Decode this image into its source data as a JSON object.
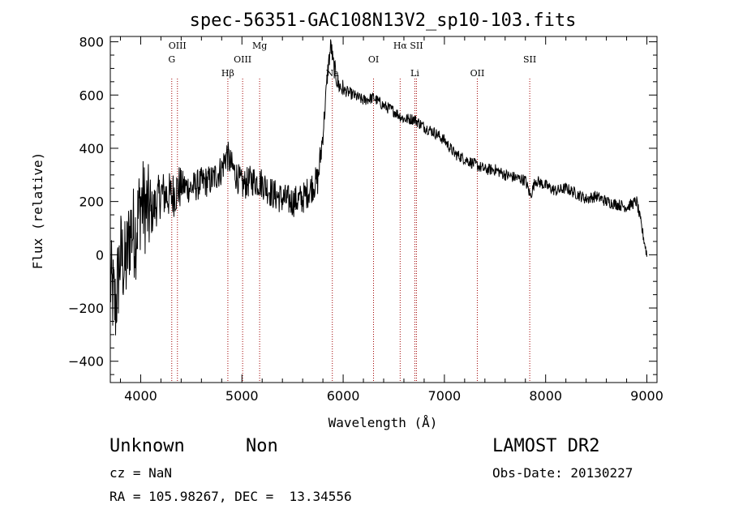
{
  "chart_data": {
    "type": "line",
    "title": "spec-56351-GAC108N13V2_sp10-103.fits",
    "xlabel": "Wavelength (Å)",
    "ylabel": "Flux (relative)",
    "xlim": [
      3700,
      9100
    ],
    "ylim": [
      -480,
      820
    ],
    "xticks": [
      4000,
      5000,
      6000,
      7000,
      8000,
      9000
    ],
    "yticks": [
      -400,
      -200,
      0,
      200,
      400,
      600,
      800
    ],
    "grid": false,
    "series": [
      {
        "color": "#000000",
        "x": [
          3700,
          3750,
          3800,
          3850,
          3900,
          3950,
          4000,
          4100,
          4200,
          4300,
          4400,
          4500,
          4600,
          4700,
          4800,
          4850,
          4900,
          5000,
          5100,
          5200,
          5300,
          5400,
          5500,
          5600,
          5700,
          5750,
          5800,
          5850,
          5880,
          5900,
          5950,
          6000,
          6100,
          6200,
          6300,
          6400,
          6500,
          6600,
          6700,
          6800,
          6900,
          7000,
          7100,
          7200,
          7300,
          7400,
          7500,
          7600,
          7700,
          7800,
          7850,
          7900,
          8000,
          8100,
          8200,
          8300,
          8400,
          8500,
          8600,
          8700,
          8800,
          8900,
          9000
        ],
        "y": [
          -100,
          -200,
          0,
          -50,
          100,
          80,
          200,
          150,
          230,
          220,
          260,
          250,
          270,
          280,
          320,
          380,
          330,
          260,
          280,
          270,
          230,
          210,
          200,
          210,
          260,
          280,
          450,
          700,
          790,
          720,
          640,
          620,
          600,
          580,
          590,
          560,
          540,
          510,
          510,
          480,
          460,
          430,
          380,
          360,
          340,
          320,
          320,
          300,
          290,
          280,
          220,
          280,
          260,
          240,
          250,
          230,
          210,
          220,
          200,
          190,
          180,
          200,
          0
        ]
      }
    ],
    "lines": [
      {
        "label": "OIII",
        "x": 4363,
        "row": 1
      },
      {
        "label": "G",
        "x": 4307,
        "row": 2
      },
      {
        "label": "Hβ",
        "x": 4861,
        "row": 3
      },
      {
        "label": "OIII",
        "x": 5007,
        "row": 2
      },
      {
        "label": "Mg",
        "x": 5175,
        "row": 1
      },
      {
        "label": "Na",
        "x": 5893,
        "row": 3
      },
      {
        "label": "OI",
        "x": 6300,
        "row": 2
      },
      {
        "label": "Hα",
        "x": 6563,
        "row": 1
      },
      {
        "label": "SII",
        "x": 6724,
        "row": 1
      },
      {
        "label": "Li",
        "x": 6708,
        "row": 3
      },
      {
        "label": "OII",
        "x": 7325,
        "row": 3
      },
      {
        "label": "SII",
        "x": 7843,
        "row": 2
      }
    ]
  },
  "footer": {
    "object_class": "Unknown",
    "subclass": "Non",
    "redshift": "cz = NaN",
    "coords": "RA = 105.98267, DEC =  13.34556",
    "survey": "LAMOST DR2",
    "obs_date": "Obs-Date: 20130227"
  }
}
